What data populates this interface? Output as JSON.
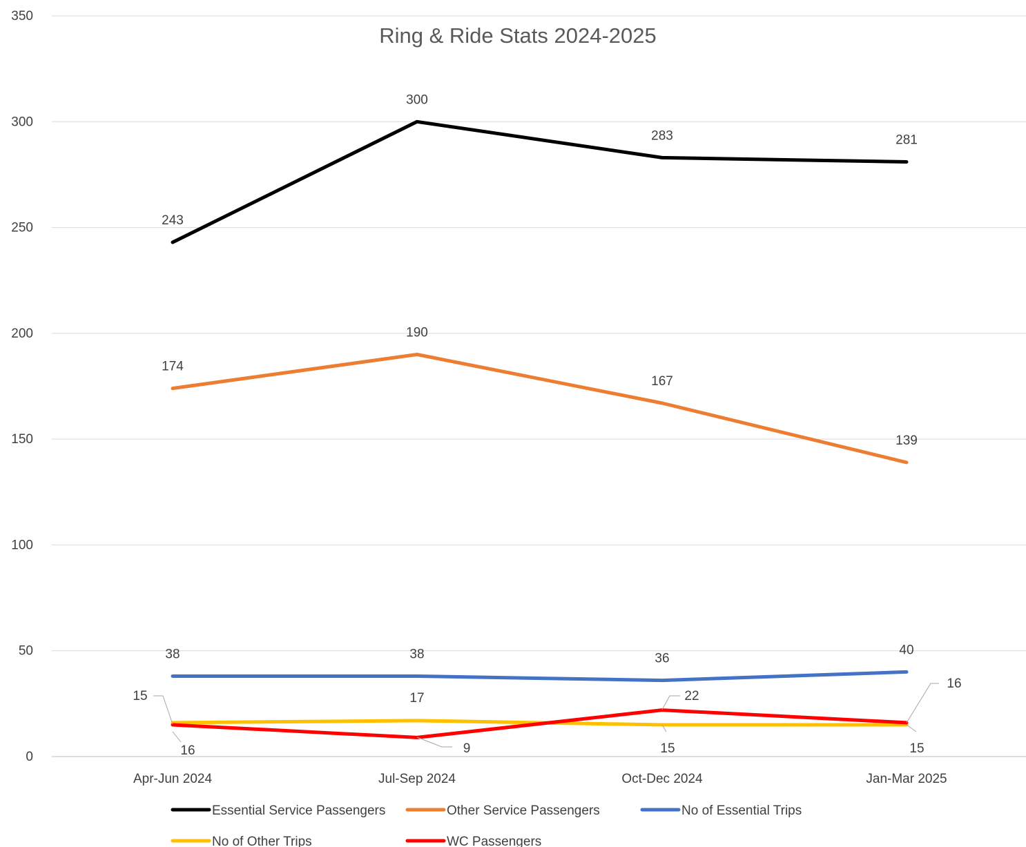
{
  "chart_data": {
    "type": "line",
    "title": "Ring & Ride Stats 2024-2025",
    "categories": [
      "Apr-Jun 2024",
      "Jul-Sep 2024",
      "Oct-Dec 2024",
      "Jan-Mar 2025"
    ],
    "ylim": [
      0,
      350
    ],
    "yticks": [
      0,
      50,
      100,
      150,
      200,
      250,
      300,
      350
    ],
    "grid": true,
    "legend_position": "bottom",
    "series": [
      {
        "name": "Essential Service Passengers",
        "values": [
          243,
          300,
          283,
          281
        ],
        "color": "#000000"
      },
      {
        "name": "Other Service Passengers",
        "values": [
          174,
          190,
          167,
          139
        ],
        "color": "#ED7D31"
      },
      {
        "name": "No of Essential Trips",
        "values": [
          38,
          38,
          36,
          40
        ],
        "color": "#4472C4"
      },
      {
        "name": "No of Other Trips",
        "values": [
          16,
          17,
          15,
          15
        ],
        "color": "#FFC000"
      },
      {
        "name": "WC Passengers",
        "values": [
          15,
          9,
          22,
          16
        ],
        "color": "#FF0000"
      }
    ]
  }
}
